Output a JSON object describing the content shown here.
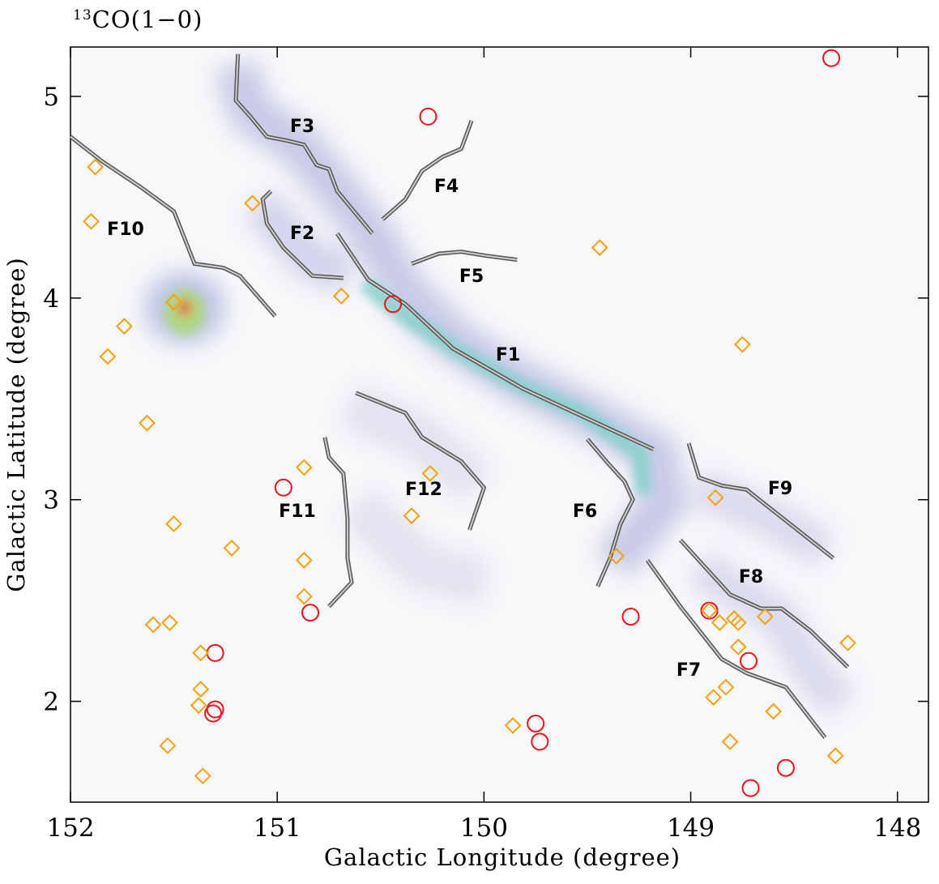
{
  "chart_data": {
    "type": "scatter",
    "title_sup": "13",
    "title": "CO(1−0)",
    "x_label": "Galactic Longitude (degree)",
    "y_label": "Galactic Latitude (degree)",
    "xlim": [
      152,
      147.85
    ],
    "ylim": [
      1.5,
      5.245
    ],
    "xticks": [
      152,
      151,
      150,
      149,
      148
    ],
    "yticks": [
      2,
      3,
      4,
      5
    ],
    "series": [
      {
        "marker": "circle",
        "color": "#e8141c",
        "x": [
          148.32,
          150.27,
          150.44,
          150.97,
          150.84,
          151.3,
          151.3,
          151.31,
          149.29,
          148.91,
          148.72,
          149.75,
          149.73,
          148.54,
          148.71
        ],
        "y": [
          5.19,
          4.9,
          3.97,
          3.06,
          2.44,
          2.24,
          1.96,
          1.94,
          2.42,
          2.45,
          2.2,
          1.89,
          1.8,
          1.67,
          1.57
        ]
      },
      {
        "marker": "diamond",
        "color": "#f5a00f",
        "x": [
          151.88,
          151.9,
          151.12,
          151.5,
          151.74,
          151.82,
          150.69,
          149.44,
          148.75,
          151.63,
          150.87,
          150.26,
          150.35,
          148.88,
          151.5,
          151.22,
          150.87,
          149.36,
          150.87,
          151.6,
          151.52,
          151.37,
          151.37,
          151.38,
          151.53,
          151.36,
          149.86,
          148.91,
          148.86,
          148.79,
          148.77,
          148.64,
          148.77,
          148.83,
          148.89,
          148.6,
          148.81,
          148.24,
          148.3
        ],
        "y": [
          4.65,
          4.38,
          4.47,
          3.98,
          3.86,
          3.71,
          4.01,
          4.25,
          3.77,
          3.38,
          3.16,
          3.13,
          2.92,
          3.01,
          2.88,
          2.76,
          2.7,
          2.72,
          2.52,
          2.38,
          2.39,
          2.24,
          2.06,
          1.98,
          1.78,
          1.63,
          1.88,
          2.45,
          2.39,
          2.41,
          2.39,
          2.42,
          2.27,
          2.07,
          2.02,
          1.95,
          1.8,
          2.29,
          1.73
        ]
      }
    ],
    "filaments": [
      {
        "name": "F1",
        "x": [
          150.71,
          150.56,
          150.38,
          150.15,
          149.81,
          149.6,
          149.18
        ],
        "y": [
          4.32,
          4.09,
          3.97,
          3.75,
          3.55,
          3.45,
          3.25
        ]
      },
      {
        "name": "F2",
        "x": [
          151.03,
          151.07,
          151.05,
          150.97,
          150.83,
          150.68
        ],
        "y": [
          4.53,
          4.49,
          4.37,
          4.25,
          4.11,
          4.1
        ]
      },
      {
        "name": "F3",
        "x": [
          151.19,
          151.2,
          151.13,
          151.05,
          150.95,
          150.87,
          150.81,
          150.75,
          150.71,
          150.54
        ],
        "y": [
          5.21,
          4.98,
          4.9,
          4.8,
          4.78,
          4.76,
          4.66,
          4.64,
          4.53,
          4.32
        ]
      },
      {
        "name": "F4",
        "x": [
          150.49,
          150.38,
          150.3,
          150.2,
          150.11,
          150.06
        ],
        "y": [
          4.39,
          4.49,
          4.63,
          4.7,
          4.74,
          4.88
        ]
      },
      {
        "name": "F5",
        "x": [
          150.35,
          150.22,
          150.11,
          149.99,
          149.84
        ],
        "y": [
          4.17,
          4.22,
          4.23,
          4.21,
          4.19
        ]
      },
      {
        "name": "F6",
        "x": [
          149.5,
          149.4,
          149.32,
          149.28,
          149.34,
          149.39,
          149.45
        ],
        "y": [
          3.3,
          3.18,
          3.09,
          3.0,
          2.88,
          2.71,
          2.57
        ]
      },
      {
        "name": "F7",
        "x": [
          149.21,
          149.05,
          148.85,
          148.73,
          148.54,
          148.35
        ],
        "y": [
          2.7,
          2.47,
          2.21,
          2.14,
          2.07,
          1.82
        ]
      },
      {
        "name": "F8",
        "x": [
          149.05,
          148.81,
          148.66,
          148.56,
          148.42,
          148.24
        ],
        "y": [
          2.8,
          2.53,
          2.46,
          2.46,
          2.35,
          2.17
        ]
      },
      {
        "name": "F9",
        "x": [
          149.01,
          148.96,
          148.85,
          148.73,
          148.31
        ],
        "y": [
          3.28,
          3.11,
          3.07,
          3.05,
          2.71
        ]
      },
      {
        "name": "F10",
        "x": [
          152.0,
          151.85,
          151.66,
          151.5,
          151.4,
          151.26,
          151.18,
          151.01
        ],
        "y": [
          4.8,
          4.68,
          4.55,
          4.43,
          4.17,
          4.15,
          4.11,
          3.91
        ]
      },
      {
        "name": "F11",
        "x": [
          150.77,
          150.75,
          150.68,
          150.66,
          150.66,
          150.64,
          150.75
        ],
        "y": [
          3.31,
          3.21,
          3.13,
          2.91,
          2.71,
          2.59,
          2.47
        ]
      },
      {
        "name": "F12",
        "x": [
          150.62,
          150.5,
          150.38,
          150.3,
          150.11,
          150.0,
          150.07
        ],
        "y": [
          3.53,
          3.48,
          3.43,
          3.31,
          3.19,
          3.06,
          2.85
        ]
      }
    ]
  }
}
